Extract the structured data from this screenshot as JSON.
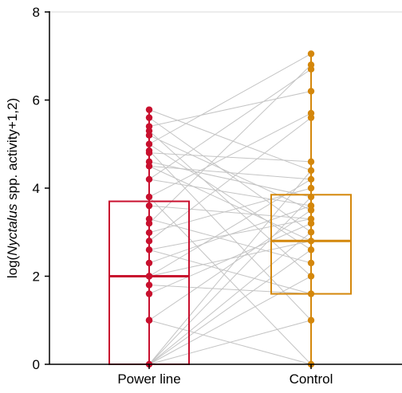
{
  "chart_data": {
    "type": "boxplot",
    "ylabel_parts": [
      "log(",
      "Nyctalus",
      " spp. activity+1,2)"
    ],
    "ylim": [
      0,
      8
    ],
    "yticks": [
      {
        "value": 0,
        "label": "0"
      },
      {
        "value": 2,
        "label": "2"
      },
      {
        "value": 4,
        "label": "4"
      },
      {
        "value": 6,
        "label": "6"
      },
      {
        "value": 8,
        "label": "8"
      }
    ],
    "categories": [
      "Power line",
      "Control"
    ],
    "colors": {
      "Power line": "#c8102e",
      "Control": "#d4870b",
      "pairs": "#c4c4c4",
      "axis": "#000000",
      "grid": "#d9d9d9"
    },
    "boxes": [
      {
        "name": "Power line",
        "q1": 0.0,
        "median": 2.0,
        "q3": 3.7,
        "whisker_low": 0.0,
        "whisker_high": 5.78
      },
      {
        "name": "Control",
        "q1": 1.6,
        "median": 2.8,
        "q3": 3.85,
        "whisker_low": 0.0,
        "whisker_high": 7.05
      }
    ],
    "points": {
      "Power line": [
        0.0,
        1.0,
        1.0,
        1.6,
        1.8,
        2.0,
        2.0,
        2.3,
        2.6,
        2.8,
        2.99,
        3.2,
        3.3,
        3.6,
        3.8,
        4.2,
        4.5,
        4.6,
        4.8,
        4.85,
        5.0,
        5.2,
        5.3,
        5.4,
        5.6,
        5.78
      ],
      "Control": [
        0.0,
        1.0,
        1.6,
        2.0,
        2.3,
        2.6,
        2.8,
        3.0,
        3.2,
        3.3,
        3.5,
        3.6,
        3.8,
        4.0,
        4.2,
        4.4,
        4.6,
        5.6,
        5.7,
        6.2,
        6.7,
        6.8,
        7.05
      ]
    },
    "pairs": [
      [
        0.0,
        2.0
      ],
      [
        0.0,
        3.8
      ],
      [
        0.0,
        4.4
      ],
      [
        0.0,
        3.0
      ],
      [
        0.0,
        2.6
      ],
      [
        0.0,
        1.0
      ],
      [
        1.0,
        0.0
      ],
      [
        1.0,
        3.5
      ],
      [
        1.6,
        3.2
      ],
      [
        1.8,
        1.6
      ],
      [
        2.0,
        4.2
      ],
      [
        2.0,
        2.8
      ],
      [
        2.3,
        3.6
      ],
      [
        2.6,
        1.6
      ],
      [
        2.8,
        5.6
      ],
      [
        2.99,
        4.0
      ],
      [
        3.2,
        6.8
      ],
      [
        3.3,
        2.3
      ],
      [
        3.6,
        3.3
      ],
      [
        3.8,
        0.0
      ],
      [
        4.2,
        6.7
      ],
      [
        4.5,
        2.8
      ],
      [
        4.6,
        3.8
      ],
      [
        4.8,
        4.6
      ],
      [
        4.85,
        1.0
      ],
      [
        5.0,
        7.05
      ],
      [
        5.2,
        3.5
      ],
      [
        5.3,
        2.0
      ],
      [
        5.4,
        6.2
      ],
      [
        5.6,
        3.0
      ],
      [
        5.78,
        4.4
      ],
      [
        3.8,
        5.7
      ],
      [
        4.5,
        4.2
      ],
      [
        2.6,
        3.3
      ],
      [
        5.0,
        2.6
      ],
      [
        4.2,
        3.6
      ]
    ]
  }
}
